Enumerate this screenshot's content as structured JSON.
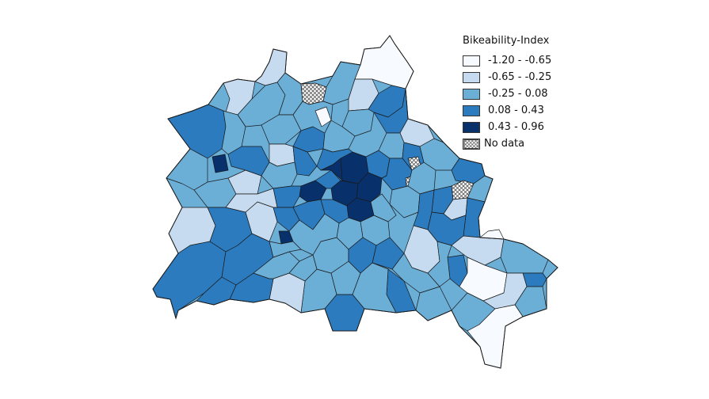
{
  "legend": {
    "title": "Bikeability-Index",
    "classes": [
      {
        "label": "-1.20 - -0.65",
        "color": "#f7fbff",
        "min": -1.2,
        "max": -0.65
      },
      {
        "label": "-0.65 - -0.25",
        "color": "#c6dbef",
        "min": -0.65,
        "max": -0.25
      },
      {
        "label": "-0.25 - 0.08",
        "color": "#6baed6",
        "min": -0.25,
        "max": 0.08
      },
      {
        "label": "0.08 - 0.43",
        "color": "#2c7bbf",
        "min": 0.08,
        "max": 0.43
      },
      {
        "label": "0.43 - 0.96",
        "color": "#08306b",
        "min": 0.43,
        "max": 0.96
      }
    ],
    "no_data_label": "No data"
  },
  "colors": {
    "c1": "#f7fbff",
    "c2": "#c6dbef",
    "c3": "#6baed6",
    "c4": "#2c7bbf",
    "c5": "#08306b",
    "hatch": "#555555",
    "border": "#1a1a1a"
  }
}
